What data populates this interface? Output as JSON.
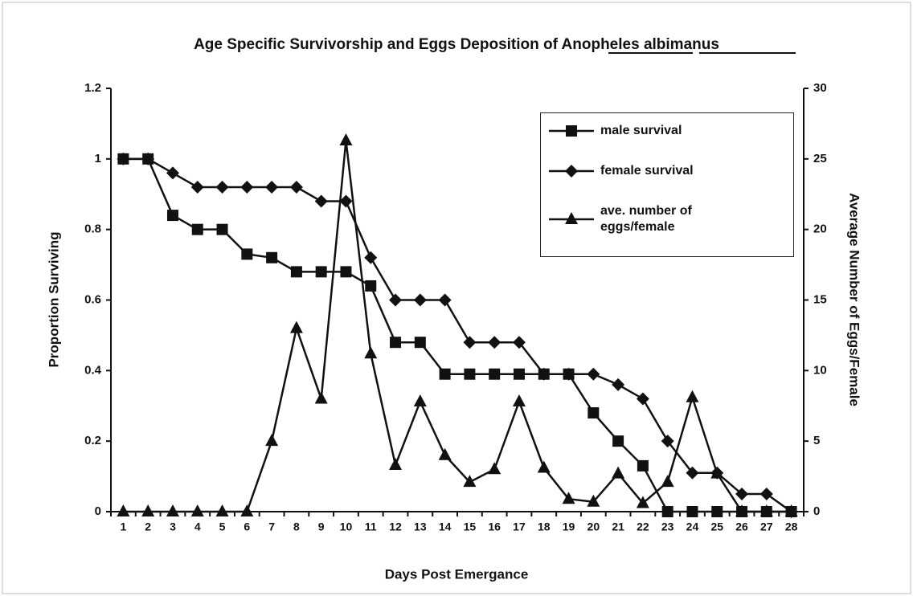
{
  "chart_data": {
    "type": "line",
    "title": "Age Specific Survivorship and Eggs Deposition of Anopheles albimanus",
    "x_label": "Days Post Emergance",
    "y_label": "Proportion Surviving",
    "y2_label": "Average Number of Eggs/Female",
    "categories": [
      1,
      2,
      3,
      4,
      5,
      6,
      7,
      8,
      9,
      10,
      11,
      12,
      13,
      14,
      15,
      16,
      17,
      18,
      19,
      20,
      21,
      22,
      23,
      24,
      25,
      26,
      27,
      28
    ],
    "ylim": [
      0,
      1.2
    ],
    "yticks": [
      0,
      0.2,
      0.4,
      0.6,
      0.8,
      1,
      1.2
    ],
    "y2lim": [
      0,
      30
    ],
    "y2ticks": [
      0,
      5,
      10,
      15,
      20,
      25,
      30
    ],
    "legend": "upper right",
    "series": [
      {
        "name": "male survival",
        "color": "#111111",
        "marker": "square",
        "values": [
          1,
          1,
          0.84,
          0.8,
          0.8,
          0.73,
          0.72,
          0.68,
          0.68,
          0.68,
          0.64,
          0.48,
          0.48,
          0.39,
          0.39,
          0.39,
          0.39,
          0.39,
          0.39,
          0.28,
          0.2,
          0.13,
          0,
          0,
          0,
          0,
          0,
          0
        ]
      },
      {
        "name": "female survival",
        "color": "#111111",
        "marker": "diamond",
        "values": [
          1,
          1,
          0.96,
          0.92,
          0.92,
          0.92,
          0.92,
          0.92,
          0.88,
          0.88,
          0.72,
          0.6,
          0.6,
          0.6,
          0.48,
          0.48,
          0.48,
          0.39,
          0.39,
          0.39,
          0.36,
          0.32,
          0.2,
          0.11,
          0.11,
          0.05,
          0.05,
          0
        ]
      },
      {
        "name": "ave. number of eggs/female",
        "color": "#111111",
        "marker": "triangle",
        "axis": "y2",
        "values": [
          0,
          0,
          0,
          0,
          0,
          0,
          5,
          13,
          8,
          26.3,
          11.2,
          3.3,
          7.8,
          4,
          2.1,
          3,
          7.8,
          3.1,
          0.9,
          0.7,
          2.7,
          0.6,
          2.1,
          8.1,
          2.7,
          0,
          0,
          0
        ]
      }
    ]
  }
}
